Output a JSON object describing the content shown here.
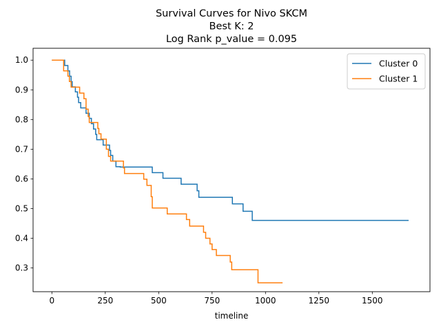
{
  "chart_data": {
    "type": "line",
    "step": true,
    "title_lines": [
      "Survival Curves for Nivo SKCM",
      "Best K: 2",
      "Log Rank p_value = 0.095"
    ],
    "xlabel": "timeline",
    "ylabel": "",
    "xlim": [
      -88,
      1770
    ],
    "ylim": [
      0.22,
      1.04
    ],
    "xticks": [
      0,
      250,
      500,
      750,
      1000,
      1250,
      1500
    ],
    "yticks": [
      0.3,
      0.4,
      0.5,
      0.6,
      0.7,
      0.8,
      0.9,
      1.0
    ],
    "ytick_labels": [
      "0.3",
      "0.4",
      "0.5",
      "0.6",
      "0.7",
      "0.8",
      "0.9",
      "1.0"
    ],
    "grid": false,
    "legend_position": "top-right",
    "series": [
      {
        "name": "Cluster 0",
        "color": "#1f77b4",
        "points": [
          [
            0,
            1.0
          ],
          [
            60,
            1.0
          ],
          [
            60,
            0.982
          ],
          [
            75,
            0.982
          ],
          [
            75,
            0.964
          ],
          [
            83,
            0.964
          ],
          [
            83,
            0.946
          ],
          [
            90,
            0.946
          ],
          [
            90,
            0.928
          ],
          [
            95,
            0.928
          ],
          [
            95,
            0.91
          ],
          [
            110,
            0.91
          ],
          [
            110,
            0.893
          ],
          [
            120,
            0.893
          ],
          [
            120,
            0.875
          ],
          [
            125,
            0.875
          ],
          [
            125,
            0.857
          ],
          [
            135,
            0.857
          ],
          [
            135,
            0.839
          ],
          [
            160,
            0.839
          ],
          [
            160,
            0.821
          ],
          [
            175,
            0.821
          ],
          [
            175,
            0.804
          ],
          [
            185,
            0.804
          ],
          [
            185,
            0.786
          ],
          [
            195,
            0.786
          ],
          [
            195,
            0.768
          ],
          [
            205,
            0.768
          ],
          [
            205,
            0.75
          ],
          [
            210,
            0.75
          ],
          [
            210,
            0.732
          ],
          [
            240,
            0.732
          ],
          [
            240,
            0.714
          ],
          [
            270,
            0.714
          ],
          [
            270,
            0.696
          ],
          [
            275,
            0.696
          ],
          [
            275,
            0.679
          ],
          [
            285,
            0.679
          ],
          [
            285,
            0.66
          ],
          [
            300,
            0.66
          ],
          [
            300,
            0.641
          ],
          [
            320,
            0.641
          ],
          [
            320,
            0.64
          ],
          [
            470,
            0.64
          ],
          [
            470,
            0.621
          ],
          [
            520,
            0.621
          ],
          [
            520,
            0.602
          ],
          [
            605,
            0.602
          ],
          [
            605,
            0.582
          ],
          [
            680,
            0.582
          ],
          [
            680,
            0.56
          ],
          [
            688,
            0.56
          ],
          [
            688,
            0.538
          ],
          [
            845,
            0.538
          ],
          [
            845,
            0.516
          ],
          [
            895,
            0.516
          ],
          [
            895,
            0.491
          ],
          [
            938,
            0.491
          ],
          [
            938,
            0.46
          ],
          [
            1670,
            0.46
          ]
        ]
      },
      {
        "name": "Cluster 1",
        "color": "#ff7f0e",
        "points": [
          [
            0,
            1.0
          ],
          [
            55,
            1.0
          ],
          [
            55,
            0.964
          ],
          [
            75,
            0.964
          ],
          [
            75,
            0.946
          ],
          [
            82,
            0.946
          ],
          [
            82,
            0.928
          ],
          [
            90,
            0.928
          ],
          [
            90,
            0.909
          ],
          [
            130,
            0.909
          ],
          [
            130,
            0.889
          ],
          [
            150,
            0.889
          ],
          [
            150,
            0.87
          ],
          [
            160,
            0.87
          ],
          [
            160,
            0.835
          ],
          [
            170,
            0.835
          ],
          [
            170,
            0.81
          ],
          [
            175,
            0.81
          ],
          [
            175,
            0.79
          ],
          [
            215,
            0.79
          ],
          [
            215,
            0.77
          ],
          [
            220,
            0.77
          ],
          [
            220,
            0.752
          ],
          [
            230,
            0.752
          ],
          [
            230,
            0.734
          ],
          [
            255,
            0.734
          ],
          [
            255,
            0.7
          ],
          [
            265,
            0.7
          ],
          [
            265,
            0.676
          ],
          [
            275,
            0.676
          ],
          [
            275,
            0.66
          ],
          [
            335,
            0.66
          ],
          [
            335,
            0.637
          ],
          [
            340,
            0.637
          ],
          [
            340,
            0.618
          ],
          [
            430,
            0.618
          ],
          [
            430,
            0.599
          ],
          [
            445,
            0.599
          ],
          [
            445,
            0.578
          ],
          [
            465,
            0.578
          ],
          [
            465,
            0.54
          ],
          [
            470,
            0.54
          ],
          [
            470,
            0.502
          ],
          [
            540,
            0.502
          ],
          [
            540,
            0.482
          ],
          [
            630,
            0.482
          ],
          [
            630,
            0.463
          ],
          [
            645,
            0.463
          ],
          [
            645,
            0.441
          ],
          [
            710,
            0.441
          ],
          [
            710,
            0.42
          ],
          [
            720,
            0.42
          ],
          [
            720,
            0.4
          ],
          [
            740,
            0.4
          ],
          [
            740,
            0.381
          ],
          [
            750,
            0.381
          ],
          [
            750,
            0.362
          ],
          [
            770,
            0.362
          ],
          [
            770,
            0.342
          ],
          [
            835,
            0.342
          ],
          [
            835,
            0.32
          ],
          [
            842,
            0.32
          ],
          [
            842,
            0.294
          ],
          [
            965,
            0.294
          ],
          [
            965,
            0.25
          ],
          [
            1080,
            0.25
          ]
        ]
      }
    ]
  }
}
